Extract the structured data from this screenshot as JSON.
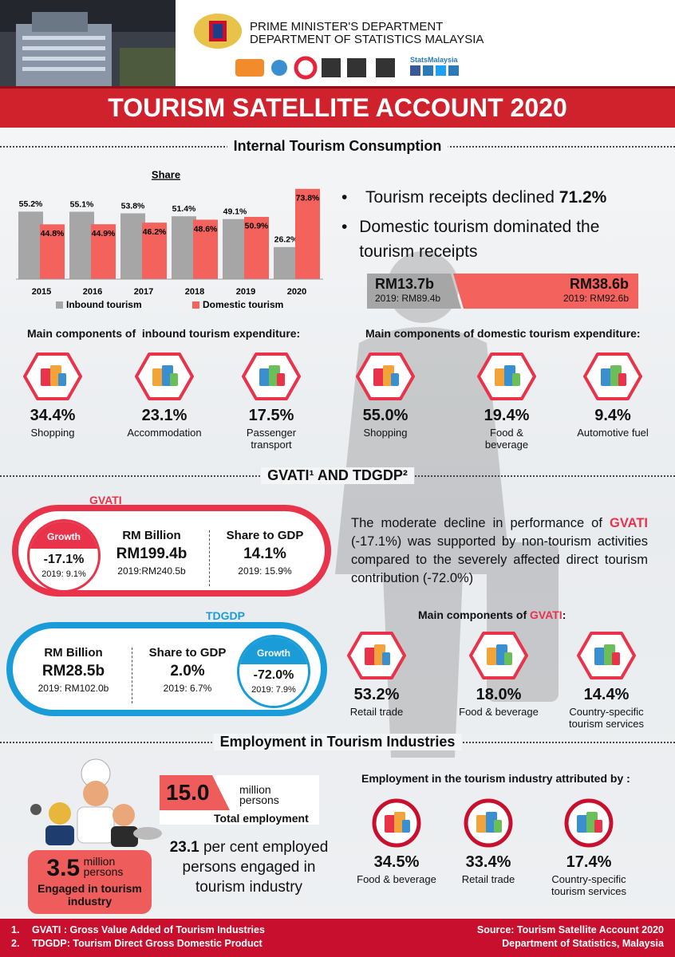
{
  "header": {
    "department": "PRIME MINISTER'S DEPARTMENT",
    "agency": "DEPARTMENT OF STATISTICS MALAYSIA",
    "brand": "StatsMalaysia",
    "title": "TOURISM SATELLITE ACCOUNT 2020"
  },
  "consumption": {
    "heading": "Internal Tourism Consumption",
    "bullets": [
      {
        "text": "Tourism receipts declined",
        "highlight": "71.2%"
      },
      {
        "text": "Domestic tourism dominated the tourism receipts"
      }
    ],
    "receipts": {
      "inbound": {
        "value": "RM13.7b",
        "previous": "2019: RM89.4b"
      },
      "domestic": {
        "value": "RM38.6b",
        "previous": "2019: RM92.6b"
      }
    },
    "inbound": {
      "heading": "Main components of  inbound tourism expenditure:",
      "items": [
        {
          "share": "34.4%",
          "label": "Shopping"
        },
        {
          "share": "23.1%",
          "label": "Accommodation"
        },
        {
          "share": "17.5%",
          "label": "Passenger transport"
        }
      ]
    },
    "domestic": {
      "heading": "Main components of domestic tourism expenditure:",
      "items": [
        {
          "share": "55.0%",
          "label": "Shopping"
        },
        {
          "share": "19.4%",
          "label": "Food & beverage"
        },
        {
          "share": "9.4%",
          "label": "Automotive fuel"
        }
      ]
    }
  },
  "chart_data": {
    "type": "bar",
    "title": "Share",
    "categories": [
      "2015",
      "2016",
      "2017",
      "2018",
      "2019",
      "2020"
    ],
    "series": [
      {
        "name": "Inbound tourism",
        "color": "#a6a6a6",
        "values": [
          55.2,
          55.1,
          53.8,
          51.4,
          49.1,
          26.2
        ],
        "value_labels": [
          "55.2%",
          "55.1%",
          "53.8%",
          "51.4%",
          "49.1%",
          "26.2%"
        ]
      },
      {
        "name": "Domestic tourism",
        "color": "#f4625e",
        "values": [
          44.8,
          44.9,
          46.2,
          48.6,
          50.9,
          73.8
        ],
        "value_labels": [
          "44.8%",
          "44.9%",
          "46.2%",
          "48.6%",
          "50.9%",
          "73.8%"
        ]
      }
    ],
    "ylim": [
      0,
      75
    ],
    "legend": "bottom"
  },
  "gvati": {
    "heading": "GVATI¹ AND TDGDP²",
    "gvati_box": {
      "label": "GVATI",
      "growth": {
        "label": "Growth",
        "value": "-17.1%",
        "previous": "2019: 9.1%"
      },
      "rm": {
        "label": "RM Billion",
        "value": "RM199.4b",
        "previous": "2019:RM240.5b"
      },
      "gdp": {
        "label": "Share to GDP",
        "value": "14.1%",
        "previous": "2019: 15.9%"
      }
    },
    "tdgdp_box": {
      "label": "TDGDP",
      "rm": {
        "label": "RM Billion",
        "value": "RM28.5b",
        "previous": "2019: RM102.0b"
      },
      "gdp": {
        "label": "Share to GDP",
        "value": "2.0%",
        "previous": "2019: 6.7%"
      },
      "growth": {
        "label": "Growth",
        "value": "-72.0%",
        "previous": "2019: 7.9%"
      }
    },
    "paragraph": [
      "The moderate decline in performance of ",
      "GVATI",
      " (-17.1%) was supported by non-tourism activities compared to the severely affected direct tourism contribution (-72.0%)"
    ],
    "components": {
      "heading": [
        "Main components of ",
        "GVATI",
        ":"
      ],
      "items": [
        {
          "share": "53.2%",
          "label": "Retail trade"
        },
        {
          "share": "18.0%",
          "label": "Food & beverage"
        },
        {
          "share": "14.4%",
          "label": "Country-specific tourism services"
        }
      ]
    }
  },
  "employment": {
    "heading": "Employment in Tourism Industries",
    "total": {
      "value": "15.0",
      "unit": "million persons",
      "label": "Total employment"
    },
    "statement": {
      "value": "23.1",
      "text": "per cent employed persons engaged in tourism industry"
    },
    "engaged": {
      "value": "3.5",
      "unit": "million persons",
      "label": "Engaged in tourism industry"
    },
    "attributed": {
      "heading": "Employment in the tourism industry attributed by :",
      "items": [
        {
          "share": "34.5%",
          "label": "Food & beverage"
        },
        {
          "share": "33.4%",
          "label": "Retail trade"
        },
        {
          "share": "17.4%",
          "label": "Country-specific tourism services"
        }
      ]
    }
  },
  "footer": {
    "notes": [
      {
        "number": "1.",
        "text": "GVATI : Gross Value Added of Tourism Industries"
      },
      {
        "number": "2.",
        "text": "TDGDP: Tourism Direct Gross Domestic Product"
      }
    ],
    "source": [
      "Source: Tourism Satellite Account 2020",
      "Department of Statistics, Malaysia"
    ]
  }
}
